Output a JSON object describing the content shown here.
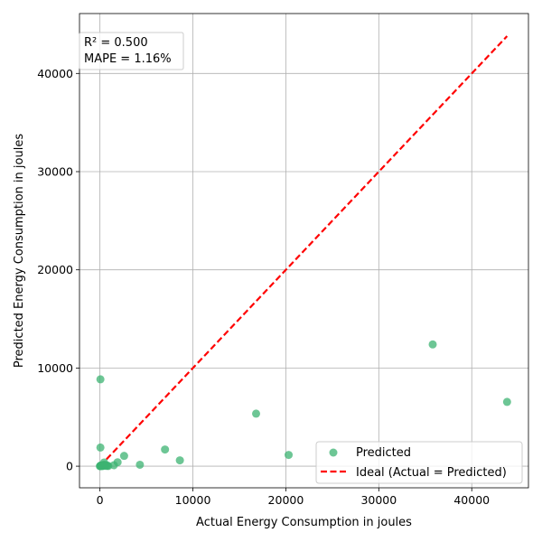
{
  "chart_data": {
    "type": "scatter",
    "title": "",
    "xlabel": "Actual Energy Consumption in joules",
    "ylabel": "Predicted Energy Consumption in joules",
    "xlim": [
      -2200,
      46100
    ],
    "ylim": [
      -2200,
      46100
    ],
    "xticks": [
      0,
      10000,
      20000,
      30000,
      40000
    ],
    "yticks": [
      0,
      10000,
      20000,
      30000,
      40000
    ],
    "grid": true,
    "legend_position": "bottom-right",
    "stats_box": {
      "lines": [
        "R² = 0.500",
        "MAPE = 1.16%"
      ],
      "position": "top-left"
    },
    "series": [
      {
        "name": "Predicted",
        "kind": "scatter",
        "color": "#3cb371",
        "points": [
          [
            0,
            0
          ],
          [
            30,
            20
          ],
          [
            60,
            50
          ],
          [
            100,
            80
          ],
          [
            150,
            30
          ],
          [
            200,
            60
          ],
          [
            250,
            10
          ],
          [
            300,
            120
          ],
          [
            350,
            70
          ],
          [
            400,
            40
          ],
          [
            500,
            150
          ],
          [
            600,
            100
          ],
          [
            700,
            30
          ],
          [
            800,
            60
          ],
          [
            900,
            20
          ],
          [
            450,
            380
          ],
          [
            50,
            8850
          ],
          [
            50,
            1900
          ],
          [
            1500,
            100
          ],
          [
            1900,
            400
          ],
          [
            2600,
            1050
          ],
          [
            4300,
            150
          ],
          [
            7000,
            1700
          ],
          [
            8600,
            600
          ],
          [
            16800,
            5350
          ],
          [
            20300,
            1150
          ],
          [
            35800,
            12400
          ],
          [
            43800,
            6550
          ]
        ]
      },
      {
        "name": "Ideal (Actual = Predicted)",
        "kind": "line",
        "color": "#ff0000",
        "dashed": true,
        "x": [
          0,
          43800
        ],
        "y": [
          0,
          43800
        ]
      }
    ]
  }
}
